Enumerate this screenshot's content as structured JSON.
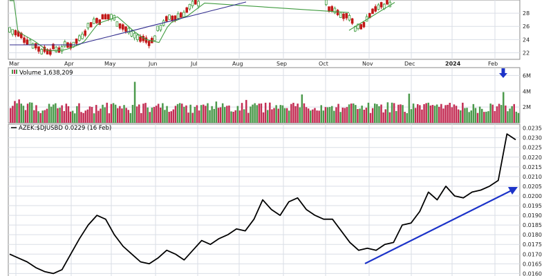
{
  "colors": {
    "price_border": "#7a7a7a",
    "grid": "#d9dee6",
    "candle_up": "#3a9a3a",
    "candle_down": "#c21818",
    "ma_short": "#3e9a3e",
    "ma_long": "#2f2a8c",
    "volume_up": "#4c9a4c",
    "volume_down": "#c32d54",
    "ratio_line": "#000000",
    "trend_arrow": "#1c33c9",
    "volume_marker": "#1c33c9",
    "panel_border": "#8a8a8a"
  },
  "chart_data": [
    {
      "type": "candlestick",
      "panel": "price",
      "x_ticks": [
        "Mar",
        "Apr",
        "May",
        "Jun",
        "Jul",
        "Aug",
        "Sep",
        "Oct",
        "Nov",
        "Dec",
        "2024",
        "Feb"
      ],
      "y_ticks": [
        22,
        24,
        26,
        28
      ],
      "ylim": [
        21,
        30
      ],
      "moving_averages": [
        "short",
        "long"
      ],
      "grid": true
    },
    {
      "type": "bar",
      "panel": "volume",
      "legend": "Volume 1,638,209",
      "y_ticks": [
        "2M",
        "4M",
        "6M"
      ],
      "ylim": [
        0,
        7
      ],
      "marker_icon": "down-arrow-icon"
    },
    {
      "type": "line",
      "panel": "ratio",
      "legend": "AZEK:$DJUSBD 0.0229 (16 Feb)",
      "series": [
        {
          "name": "AZEK:$DJUSBD",
          "values": [
            0.017,
            0.0168,
            0.0166,
            0.0163,
            0.0161,
            0.016,
            0.0162,
            0.017,
            0.0178,
            0.0185,
            0.019,
            0.0188,
            0.018,
            0.0174,
            0.017,
            0.0166,
            0.0165,
            0.0168,
            0.0172,
            0.017,
            0.0167,
            0.0172,
            0.0177,
            0.0175,
            0.0178,
            0.018,
            0.0183,
            0.0182,
            0.0188,
            0.0198,
            0.0193,
            0.019,
            0.0197,
            0.0199,
            0.0193,
            0.019,
            0.0188,
            0.0188,
            0.0182,
            0.0176,
            0.0172,
            0.0173,
            0.0172,
            0.0175,
            0.0176,
            0.0185,
            0.0186,
            0.0192,
            0.0202,
            0.0198,
            0.0205,
            0.02,
            0.0199,
            0.0202,
            0.0203,
            0.0205,
            0.0208,
            0.0232,
            0.0229
          ]
        }
      ],
      "y_ticks": [
        "0.0160",
        "0.0165",
        "0.0170",
        "0.0175",
        "0.0180",
        "0.0185",
        "0.0190",
        "0.0195",
        "0.0200",
        "0.0205",
        "0.0210",
        "0.0215",
        "0.0220",
        "0.0225",
        "0.0230",
        "0.0235"
      ],
      "ylim": [
        0.0158,
        0.0237
      ],
      "trend_arrow": true,
      "grid": true
    }
  ]
}
